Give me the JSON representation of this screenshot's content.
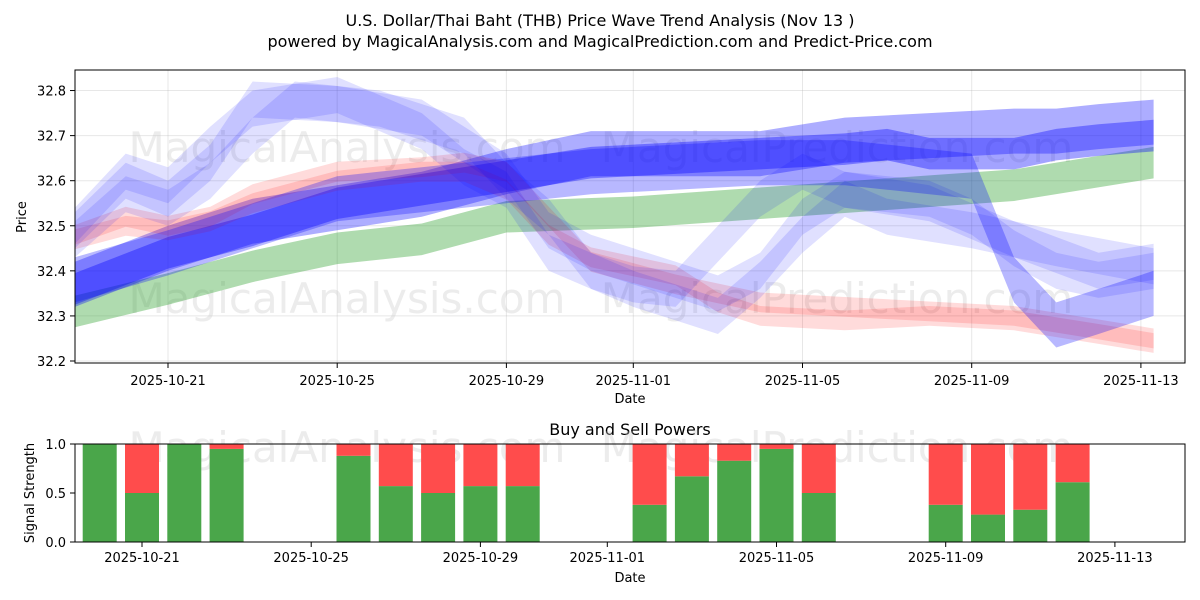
{
  "chart_data": [
    {
      "type": "area",
      "title": "U.S. Dollar/Thai Baht (THB) Price Wave Trend Analysis (Nov 13 )",
      "subtitle": "powered by MagicalAnalysis.com and MagicalPrediction.com and Predict-Price.com",
      "xlabel": "Date",
      "ylabel": "Price",
      "ylim": [
        32.2,
        32.85
      ],
      "yticks": [
        32.2,
        32.3,
        32.4,
        32.5,
        32.6,
        32.7,
        32.8
      ],
      "ytick_labels": [
        "32.2",
        "32.3",
        "32.4",
        "32.5",
        "32.6",
        "32.7",
        "32.8"
      ],
      "xticks": [
        3,
        7,
        11,
        14,
        18,
        22,
        26
      ],
      "xtick_labels": [
        "2025-10-21",
        "2025-10-25",
        "2025-10-29",
        "2025-11-01",
        "2025-11-05",
        "2025-11-09",
        "2025-11-13"
      ],
      "x_origin_date": "2025-10-18",
      "grid": true,
      "watermarks": [
        "MagicalAnalysis.com",
        "MagicalPrediction.com",
        "MagicalAnalysis.com",
        "MagicalPrediction.com"
      ],
      "bands": [
        {
          "name": "green-trend",
          "color": "#2ca02c",
          "opacity": 0.38,
          "half_width": 0.035,
          "x": [
            0.8,
            3,
            5,
            7,
            9,
            11,
            14,
            17,
            20,
            23,
            26.3
          ],
          "y": [
            32.31,
            32.36,
            32.41,
            32.45,
            32.47,
            32.52,
            32.53,
            32.55,
            32.57,
            32.59,
            32.64
          ]
        },
        {
          "name": "blue-long-a",
          "color": "#0000ff",
          "opacity": 0.32,
          "half_width": 0.05,
          "x": [
            0.8,
            3,
            5,
            7,
            9,
            11,
            13,
            15,
            17,
            19,
            21,
            23,
            24,
            25,
            26.3
          ],
          "y": [
            32.37,
            32.45,
            32.51,
            32.54,
            32.57,
            32.62,
            32.66,
            32.66,
            32.66,
            32.69,
            32.7,
            32.71,
            32.71,
            32.72,
            32.73
          ]
        },
        {
          "name": "blue-long-b",
          "color": "#0000ff",
          "opacity": 0.36,
          "half_width": 0.035,
          "x": [
            0.8,
            3,
            5,
            7,
            9,
            11,
            13,
            15,
            17,
            19,
            20,
            21,
            22,
            23,
            24,
            25,
            26.3
          ],
          "y": [
            32.36,
            32.44,
            32.49,
            32.55,
            32.58,
            32.61,
            32.64,
            32.65,
            32.66,
            32.67,
            32.68,
            32.66,
            32.66,
            32.66,
            32.68,
            32.69,
            32.7
          ]
        },
        {
          "name": "red-wave-a",
          "color": "#ff0000",
          "opacity": 0.14,
          "half_width": 0.022,
          "x": [
            0.8,
            2,
            3,
            4,
            5,
            7,
            9,
            10,
            11,
            12,
            13,
            15,
            17,
            19,
            21,
            23,
            25,
            26.3
          ],
          "y": [
            32.48,
            32.52,
            32.5,
            32.52,
            32.57,
            32.62,
            32.63,
            32.64,
            32.62,
            32.52,
            32.42,
            32.37,
            32.33,
            32.32,
            32.31,
            32.3,
            32.27,
            32.25
          ]
        },
        {
          "name": "red-wave-b",
          "color": "#ff0000",
          "opacity": 0.14,
          "half_width": 0.022,
          "x": [
            0.8,
            2,
            3,
            4,
            5,
            7,
            9,
            10,
            11,
            12,
            13,
            15,
            16,
            17,
            19,
            21,
            23,
            25,
            26.3
          ],
          "y": [
            32.47,
            32.5,
            32.49,
            32.51,
            32.55,
            32.6,
            32.62,
            32.62,
            32.58,
            32.48,
            32.43,
            32.39,
            32.33,
            32.3,
            32.29,
            32.3,
            32.29,
            32.26,
            32.24
          ]
        },
        {
          "name": "blue-wave-a",
          "color": "#0000ff",
          "opacity": 0.12,
          "half_width": 0.04,
          "x": [
            0.8,
            2,
            3,
            4,
            5,
            7,
            9,
            10,
            11,
            12,
            13,
            15,
            16,
            17,
            18,
            19,
            21,
            23,
            25,
            26.3
          ],
          "y": [
            32.49,
            32.6,
            32.56,
            32.64,
            32.78,
            32.77,
            32.74,
            32.68,
            32.62,
            32.49,
            32.44,
            32.38,
            32.35,
            32.4,
            32.52,
            32.58,
            32.55,
            32.47,
            32.4,
            32.42
          ]
        },
        {
          "name": "blue-wave-b",
          "color": "#0000ff",
          "opacity": 0.12,
          "half_width": 0.04,
          "x": [
            0.8,
            2,
            3,
            4,
            5,
            6,
            8,
            10,
            11,
            12,
            13,
            14,
            15,
            16,
            17,
            18,
            19,
            20,
            22,
            24,
            26.3
          ],
          "y": [
            32.47,
            32.57,
            32.54,
            32.6,
            32.7,
            32.78,
            32.76,
            32.7,
            32.6,
            32.52,
            32.4,
            32.36,
            32.33,
            32.3,
            32.38,
            32.48,
            32.56,
            32.52,
            32.49,
            32.45,
            32.41
          ]
        },
        {
          "name": "blue-wave-c",
          "color": "#0000ff",
          "opacity": 0.12,
          "half_width": 0.04,
          "x": [
            0.8,
            2,
            3,
            4,
            5,
            7,
            9,
            10,
            11,
            12,
            13,
            14,
            15,
            16,
            17,
            18,
            19,
            21,
            22,
            23,
            24,
            25,
            26.3
          ],
          "y": [
            32.5,
            32.62,
            32.59,
            32.68,
            32.76,
            32.79,
            32.71,
            32.63,
            32.58,
            32.44,
            32.4,
            32.37,
            32.36,
            32.46,
            32.56,
            32.62,
            32.58,
            32.56,
            32.52,
            32.45,
            32.4,
            32.38,
            32.4
          ]
        },
        {
          "name": "blue-long-c",
          "color": "#0000ff",
          "opacity": 0.28,
          "half_width": 0.05,
          "x": [
            0.8,
            3,
            5,
            7,
            9,
            11,
            13,
            15,
            17,
            19,
            20,
            21,
            22,
            23,
            24,
            25,
            26.3
          ],
          "y": [
            32.38,
            32.44,
            32.5,
            32.56,
            32.58,
            32.6,
            32.62,
            32.63,
            32.64,
            32.64,
            32.63,
            32.62,
            32.61,
            32.38,
            32.28,
            32.31,
            32.35
          ]
        }
      ]
    },
    {
      "type": "bar",
      "title": "Buy and Sell Powers",
      "xlabel": "Date",
      "ylabel": "Signal Strength",
      "ylim": [
        0,
        1
      ],
      "yticks": [
        0,
        0.5,
        1
      ],
      "ytick_labels": [
        "0.0",
        "0.5",
        "1.0"
      ],
      "xticks": [
        3,
        7,
        11,
        14,
        18,
        22,
        26
      ],
      "xtick_labels": [
        "2025-10-21",
        "2025-10-25",
        "2025-10-29",
        "2025-11-01",
        "2025-11-05",
        "2025-11-09",
        "2025-11-13"
      ],
      "series": [
        {
          "name": "Buy",
          "color": "#4aa64a"
        },
        {
          "name": "Sell",
          "color": "#ff4c4c"
        }
      ],
      "bars": [
        {
          "x": 2,
          "buy": 1.0
        },
        {
          "x": 3,
          "buy": 0.5
        },
        {
          "x": 4,
          "buy": 1.0
        },
        {
          "x": 5,
          "buy": 0.95
        },
        {
          "x": 8,
          "buy": 0.88
        },
        {
          "x": 9,
          "buy": 0.57
        },
        {
          "x": 10,
          "buy": 0.5
        },
        {
          "x": 11,
          "buy": 0.57
        },
        {
          "x": 12,
          "buy": 0.57
        },
        {
          "x": 15,
          "buy": 0.38
        },
        {
          "x": 16,
          "buy": 0.67
        },
        {
          "x": 17,
          "buy": 0.83
        },
        {
          "x": 18,
          "buy": 0.95
        },
        {
          "x": 19,
          "buy": 0.5
        },
        {
          "x": 22,
          "buy": 0.38
        },
        {
          "x": 23,
          "buy": 0.28
        },
        {
          "x": 24,
          "buy": 0.33
        },
        {
          "x": 25,
          "buy": 0.61
        }
      ]
    }
  ]
}
